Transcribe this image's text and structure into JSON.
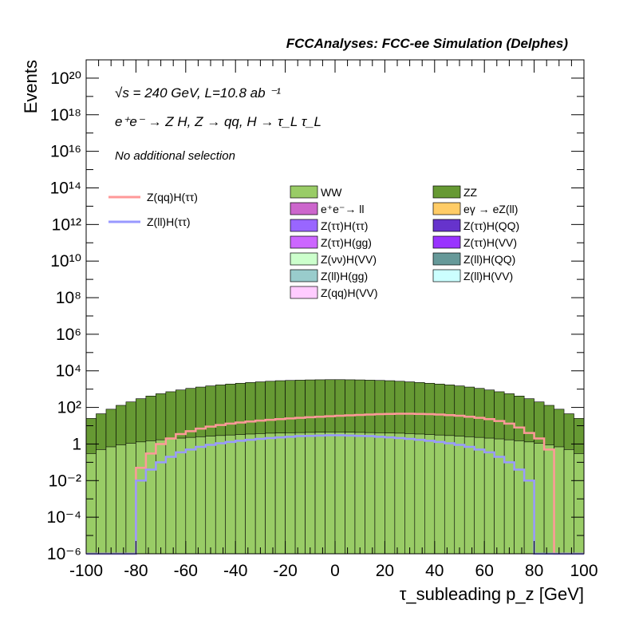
{
  "header": {
    "title": "FCCAnalyses: FCC-ee Simulation (Delphes)"
  },
  "annotations": {
    "energy": "√s = 240 GeV, L=10.8 ab ⁻¹",
    "process": "e⁺e⁻ → Z H, Z → qq, H → τ_L τ_L",
    "selection": "No additional selection"
  },
  "chart_data": {
    "type": "histogram-stacked",
    "xlabel": "τ_subleading p_z [GeV]",
    "ylabel": "Events",
    "xlim": [
      -100,
      100
    ],
    "ylim": [
      1e-06,
      1e+21
    ],
    "log_y": true,
    "x_ticks": [
      -100,
      -80,
      -60,
      -40,
      -20,
      0,
      20,
      40,
      60,
      80,
      100
    ],
    "y_ticks": [
      {
        "value": 1e-06,
        "label": "10⁻⁶"
      },
      {
        "value": 0.0001,
        "label": "10⁻⁴"
      },
      {
        "value": 0.01,
        "label": "10⁻²"
      },
      {
        "value": 1,
        "label": "1"
      },
      {
        "value": 100.0,
        "label": "10²"
      },
      {
        "value": 10000.0,
        "label": "10⁴"
      },
      {
        "value": 1000000.0,
        "label": "10⁶"
      },
      {
        "value": 100000000.0,
        "label": "10⁸"
      },
      {
        "value": 10000000000.0,
        "label": "10¹⁰"
      },
      {
        "value": 1000000000000.0,
        "label": "10¹²"
      },
      {
        "value": 100000000000000.0,
        "label": "10¹⁴"
      },
      {
        "value": 1e+16,
        "label": "10¹⁶"
      },
      {
        "value": 1e+18,
        "label": "10¹⁸"
      },
      {
        "value": 1e+20,
        "label": "10²⁰"
      }
    ],
    "bin_centers": [
      -98,
      -94,
      -90,
      -86,
      -82,
      -78,
      -74,
      -70,
      -66,
      -62,
      -58,
      -54,
      -50,
      -46,
      -42,
      -38,
      -34,
      -30,
      -26,
      -22,
      -18,
      -14,
      -10,
      -6,
      -2,
      2,
      6,
      10,
      14,
      18,
      22,
      26,
      30,
      34,
      38,
      42,
      46,
      50,
      54,
      58,
      62,
      66,
      70,
      74,
      78,
      82,
      86,
      90,
      94,
      98
    ],
    "stack_cumulative": [
      {
        "name": "Z(ll)H(VV)",
        "color": "#ccffff",
        "values": [
          0,
          0,
          0,
          0,
          0,
          0,
          0,
          0.05,
          0.8,
          2,
          4,
          6,
          8,
          10,
          13,
          16,
          18,
          20,
          22,
          24,
          26,
          27,
          28,
          29,
          30,
          30,
          29,
          28,
          27,
          26,
          24,
          22,
          20,
          18,
          16,
          13,
          10,
          8,
          6,
          4,
          2,
          0.8,
          0.05,
          0,
          0,
          0,
          0,
          0,
          0,
          0
        ]
      },
      {
        "name": "Z(qq)H(VV)",
        "color": "#ffccff",
        "values": [
          0,
          0,
          0,
          0,
          0,
          0,
          0,
          0.04,
          0.5,
          1.5,
          3,
          5,
          7,
          9,
          12,
          14,
          16,
          18,
          20,
          22,
          23,
          24,
          25,
          26,
          26,
          26,
          26,
          25,
          24,
          23,
          22,
          20,
          18,
          16,
          14,
          12,
          9,
          7,
          5,
          3,
          1.5,
          0.5,
          0.04,
          0,
          0,
          0,
          0,
          0,
          0,
          0
        ]
      },
      {
        "name": "Z(ll)H(gg)",
        "color": "#99cccc",
        "values": [
          0,
          0,
          0,
          0,
          0,
          0,
          0,
          0.03,
          0.4,
          1.2,
          2.5,
          4,
          6,
          8,
          10,
          12,
          14,
          15,
          17,
          18,
          19,
          20,
          21,
          22,
          22,
          22,
          22,
          21,
          20,
          19,
          18,
          17,
          15,
          14,
          12,
          10,
          8,
          6,
          4,
          2.5,
          1.2,
          0.4,
          0.03,
          0,
          0,
          0,
          0,
          0,
          0,
          0
        ]
      },
      {
        "name": "Z(νν)H(VV)",
        "color": "#ccffcc",
        "values": [
          0,
          0,
          0,
          0,
          0,
          0,
          0.002,
          0.03,
          0.3,
          1,
          2,
          3.5,
          5,
          7,
          9,
          11,
          12,
          13,
          15,
          16,
          17,
          18,
          18,
          19,
          19,
          19,
          19,
          18,
          18,
          17,
          16,
          15,
          13,
          12,
          11,
          9,
          7,
          5,
          3.5,
          2,
          1,
          0.3,
          0.03,
          0.002,
          0,
          0,
          0,
          0,
          0,
          0
        ]
      },
      {
        "name": "Z(ττ)H(gg)",
        "color": "#cc66ff",
        "values": [
          0,
          0,
          0,
          0,
          0,
          0,
          0,
          0.02,
          0.2,
          0.6,
          1.2,
          2,
          3,
          4,
          5,
          6,
          7,
          8,
          8.5,
          9,
          9.5,
          10,
          10,
          10,
          10,
          10,
          10,
          10,
          10,
          9.5,
          9,
          8.5,
          8,
          7,
          6,
          5,
          4,
          3,
          2,
          1.2,
          0.6,
          0.2,
          0.02,
          0,
          0,
          0,
          0,
          0,
          0,
          0
        ]
      },
      {
        "name": "Z(ττ)H(VV)",
        "color": "#9933ff",
        "values": [
          0,
          0,
          0,
          0,
          0,
          0,
          0,
          0.01,
          0.1,
          0.3,
          0.6,
          1,
          1.5,
          2,
          2.5,
          3,
          3.3,
          3.6,
          4,
          4.2,
          4.4,
          4.6,
          4.8,
          5,
          5,
          5,
          5,
          4.8,
          4.6,
          4.4,
          4.2,
          4,
          3.6,
          3.3,
          3,
          2.5,
          2,
          1.5,
          1,
          0.6,
          0.3,
          0.1,
          0.01,
          0,
          0,
          0,
          0,
          0,
          0,
          0
        ]
      },
      {
        "name": "Z(ττ)H(QQ)",
        "color": "#6633cc",
        "values": [
          0,
          0,
          0,
          0,
          0,
          0,
          0,
          0.01,
          0.12,
          0.35,
          0.7,
          1.1,
          1.6,
          2.1,
          2.6,
          3.1,
          3.4,
          3.7,
          4.1,
          4.3,
          4.5,
          4.7,
          4.9,
          5.1,
          5.1,
          5.1,
          5.1,
          4.9,
          4.7,
          4.5,
          4.3,
          4.1,
          3.7,
          3.4,
          3.1,
          2.6,
          2.1,
          1.6,
          1.1,
          0.7,
          0.35,
          0.12,
          0.01,
          0,
          0,
          0,
          0,
          0,
          0,
          0
        ]
      },
      {
        "name": "Z(ττ)H(ττ)",
        "color": "#9966ff",
        "values": [
          0,
          0,
          0,
          0,
          0,
          0,
          0,
          0.02,
          0.15,
          0.4,
          0.8,
          1.3,
          1.9,
          2.5,
          3.1,
          3.6,
          4,
          4.3,
          4.7,
          5,
          5.2,
          5.4,
          5.6,
          5.8,
          5.8,
          5.8,
          5.8,
          5.6,
          5.4,
          5.2,
          5,
          4.7,
          4.3,
          4,
          3.6,
          3.1,
          2.5,
          1.9,
          1.3,
          0.8,
          0.4,
          0.15,
          0.02,
          0,
          0,
          0,
          0,
          0,
          0,
          0
        ]
      },
      {
        "name": "Z(ll)H(QQ)",
        "color": "#669999",
        "values": [
          2,
          3,
          5,
          8,
          12,
          18,
          26,
          35,
          45,
          55,
          65,
          75,
          85,
          95,
          105,
          115,
          125,
          135,
          145,
          150,
          155,
          160,
          163,
          166,
          168,
          168,
          166,
          163,
          160,
          155,
          150,
          145,
          135,
          125,
          115,
          105,
          95,
          85,
          75,
          65,
          55,
          45,
          35,
          26,
          18,
          12,
          8,
          5,
          3,
          2
        ]
      },
      {
        "name": "eγ → eZ(ll)",
        "color": "#ffcc66",
        "values": [
          0.6,
          0.8,
          1,
          1.2,
          1.5,
          1.8,
          2,
          2.2,
          2.4,
          2.6,
          2.8,
          3,
          3.2,
          3.4,
          3.6,
          3.8,
          4,
          4.2,
          4.4,
          4.5,
          4.6,
          4.7,
          4.8,
          4.9,
          5,
          5,
          4.9,
          4.8,
          4.7,
          4.6,
          4.5,
          4.4,
          4.2,
          4,
          3.8,
          3.6,
          3.4,
          3.2,
          3,
          2.8,
          2.6,
          2.4,
          2.2,
          2,
          1.8,
          1.5,
          1.2,
          1,
          0.8,
          0.6
        ]
      },
      {
        "name": "e⁺e⁻→ ll",
        "color": "#cc66cc",
        "values": [
          3,
          4,
          5,
          6,
          7,
          8,
          9,
          10,
          11,
          12,
          13,
          14,
          15,
          16,
          17,
          18,
          19,
          20,
          21,
          22,
          23,
          24,
          25,
          26,
          26,
          26,
          26,
          25,
          24,
          23,
          22,
          21,
          20,
          19,
          18,
          17,
          16,
          15,
          14,
          13,
          12,
          11,
          10,
          9,
          8,
          7,
          6,
          5,
          4,
          3
        ]
      },
      {
        "name": "ZZ",
        "color": "#669933",
        "values": [
          25,
          45,
          80,
          130,
          200,
          300,
          420,
          560,
          720,
          900,
          1100,
          1300,
          1500,
          1700,
          1900,
          2100,
          2300,
          2500,
          2700,
          2900,
          3000,
          3100,
          3200,
          3250,
          3300,
          3300,
          3250,
          3200,
          3100,
          3000,
          2900,
          2700,
          2500,
          2300,
          2100,
          1900,
          1700,
          1500,
          1300,
          1100,
          900,
          720,
          560,
          420,
          300,
          200,
          130,
          80,
          45,
          25
        ]
      },
      {
        "name": "WW",
        "color": "#99cc66",
        "values": [
          0.3,
          0.5,
          0.7,
          0.9,
          1.1,
          1.3,
          1.5,
          1.7,
          1.9,
          2.1,
          2.3,
          2.5,
          2.7,
          2.9,
          3.1,
          3.3,
          3.5,
          3.7,
          3.9,
          4,
          4.1,
          4.2,
          4.3,
          4.4,
          4.5,
          4.5,
          4.4,
          4.3,
          4.2,
          4.1,
          4,
          3.9,
          3.7,
          3.5,
          3.3,
          3.1,
          2.9,
          2.7,
          2.5,
          2.3,
          2.1,
          1.9,
          1.7,
          1.5,
          1.3,
          1.1,
          0.9,
          0.7,
          0.5,
          0.3
        ]
      }
    ],
    "signals": [
      {
        "name": "Z(qq)H(ττ)",
        "color": "#ff9999",
        "values": [
          0,
          0,
          0,
          0,
          0,
          0.05,
          0.3,
          1,
          2,
          3.5,
          5,
          7,
          9,
          11,
          13,
          15,
          17,
          19,
          21,
          23,
          25,
          27,
          29,
          31,
          33,
          35,
          37,
          39,
          41,
          43,
          44,
          45,
          45,
          44,
          43,
          41,
          38,
          35,
          31,
          27,
          23,
          18,
          13,
          8,
          4,
          2,
          0.5,
          0,
          0,
          0
        ]
      },
      {
        "name": "Z(ll)H(ττ)",
        "color": "#9999ff",
        "values": [
          0,
          0,
          0,
          0,
          0,
          0.01,
          0.04,
          0.1,
          0.2,
          0.35,
          0.5,
          0.7,
          0.9,
          1.1,
          1.3,
          1.5,
          1.7,
          1.9,
          2.1,
          2.3,
          2.5,
          2.7,
          2.8,
          2.9,
          3,
          3,
          2.9,
          2.8,
          2.7,
          2.5,
          2.3,
          2.1,
          1.9,
          1.7,
          1.5,
          1.3,
          1.1,
          0.9,
          0.7,
          0.5,
          0.35,
          0.2,
          0.1,
          0.04,
          0.01,
          0,
          0,
          0,
          0,
          0
        ]
      }
    ],
    "legend": {
      "signals": [
        "Z(qq)H(ττ)",
        "Z(ll)H(ττ)"
      ],
      "col1": [
        "WW",
        "e⁺e⁻→ ll",
        "Z(ττ)H(ττ)",
        "Z(ττ)H(gg)",
        "Z(νν)H(VV)",
        "Z(ll)H(gg)",
        "Z(qq)H(VV)"
      ],
      "col2": [
        "ZZ",
        "eγ → eZ(ll)",
        "Z(ττ)H(QQ)",
        "Z(ττ)H(VV)",
        "Z(ll)H(QQ)",
        "Z(ll)H(VV)"
      ]
    }
  }
}
